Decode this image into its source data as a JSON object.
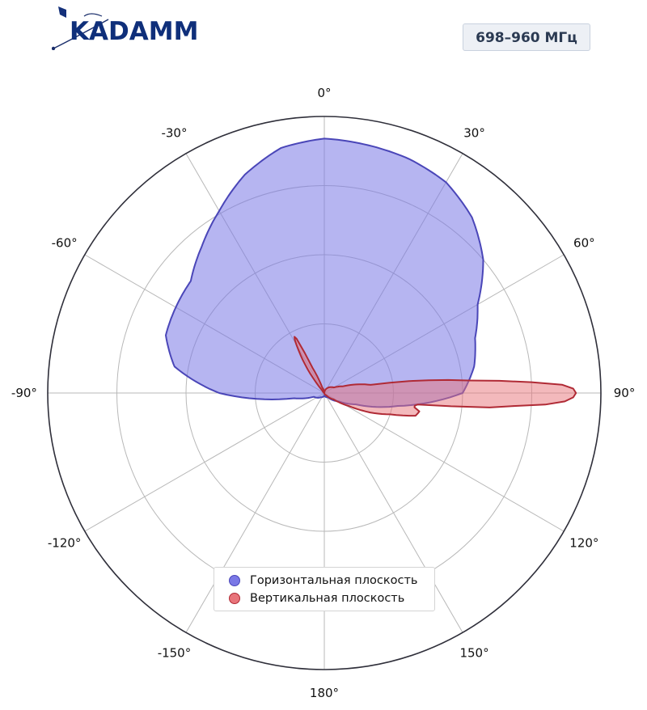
{
  "brand": {
    "logo_text": "KADAMM"
  },
  "badge": {
    "frequency": "698–960 МГц"
  },
  "chart_data": {
    "type": "polar-area",
    "angle_ticks": [
      "0°",
      "30°",
      "60°",
      "90°",
      "120°",
      "150°",
      "180°",
      "-150°",
      "-120°",
      "-90°",
      "-60°",
      "-30°"
    ],
    "angle_values": [
      0,
      30,
      60,
      90,
      120,
      150,
      180,
      -150,
      -120,
      -90,
      -60,
      -30
    ],
    "radial_range": [
      0,
      1
    ],
    "radial_gridlines": [
      0.25,
      0.5,
      0.75,
      1.0
    ],
    "radial_tick_labels_visible": false,
    "grid": true,
    "legend_position": "bottom-center",
    "series": [
      {
        "name": "Горизонтальная плоскость",
        "color": "#7a78e6",
        "edge": "#4a46b8",
        "points": [
          [
            0,
            0.92
          ],
          [
            10,
            0.91
          ],
          [
            20,
            0.9
          ],
          [
            30,
            0.88
          ],
          [
            40,
            0.83
          ],
          [
            50,
            0.75
          ],
          [
            60,
            0.64
          ],
          [
            70,
            0.58
          ],
          [
            80,
            0.55
          ],
          [
            90,
            0.5
          ],
          [
            100,
            0.27
          ],
          [
            110,
            0.12
          ],
          [
            120,
            0.06
          ],
          [
            140,
            0.02
          ],
          [
            180,
            0.01
          ],
          [
            220,
            0.02
          ],
          [
            250,
            0.04
          ],
          [
            260,
            0.11
          ],
          [
            270,
            0.38
          ],
          [
            280,
            0.55
          ],
          [
            290,
            0.61
          ],
          [
            300,
            0.62
          ],
          [
            310,
            0.63
          ],
          [
            320,
            0.69
          ],
          [
            330,
            0.76
          ],
          [
            340,
            0.84
          ],
          [
            350,
            0.9
          ],
          [
            360,
            0.92
          ]
        ]
      },
      {
        "name": "Вертикальная плоскость",
        "color": "#e8747a",
        "edge": "#b02a35",
        "points": [
          [
            0,
            0
          ],
          [
            60,
            0.04
          ],
          [
            70,
            0.07
          ],
          [
            80,
            0.17
          ],
          [
            84,
            0.45
          ],
          [
            85,
            0.52
          ],
          [
            87,
            0.75
          ],
          [
            88,
            0.86
          ],
          [
            89,
            0.9
          ],
          [
            90,
            0.91
          ],
          [
            91,
            0.9
          ],
          [
            92,
            0.87
          ],
          [
            93,
            0.8
          ],
          [
            94,
            0.68
          ],
          [
            95,
            0.6
          ],
          [
            96,
            0.46
          ],
          [
            97,
            0.34
          ],
          [
            98,
            0.33
          ],
          [
            99,
            0.33
          ],
          [
            101,
            0.35
          ],
          [
            104,
            0.34
          ],
          [
            108,
            0.25
          ],
          [
            113,
            0.18
          ],
          [
            118,
            0.1
          ],
          [
            125,
            0.04
          ],
          [
            140,
            0.01
          ],
          [
            180,
            0.0
          ],
          [
            300,
            0.0
          ],
          [
            320,
            0.01
          ],
          [
            331,
            0.22
          ],
          [
            332,
            0.23
          ],
          [
            333,
            0.22
          ],
          [
            335,
            0.1
          ],
          [
            340,
            0.02
          ],
          [
            360,
            0
          ]
        ]
      }
    ]
  }
}
